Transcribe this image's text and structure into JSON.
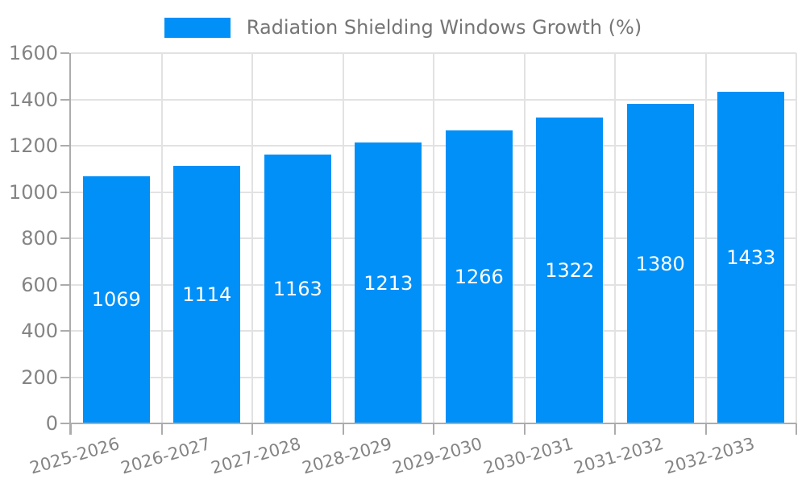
{
  "legend": {
    "label": "Radiation Shielding Windows Growth (%)"
  },
  "chart_data": {
    "type": "bar",
    "title": "",
    "xlabel": "",
    "ylabel": "",
    "legend": "Radiation Shielding Windows Growth (%)",
    "legend_position": "top-center",
    "categories": [
      "2025-2026",
      "2026-2027",
      "2027-2028",
      "2028-2029",
      "2029-2030",
      "2030-2031",
      "2031-2032",
      "2032-2033"
    ],
    "values": [
      1069,
      1114,
      1163,
      1213,
      1266,
      1322,
      1380,
      1433
    ],
    "bar_labels_visible": true,
    "grid": true,
    "ylim": [
      0,
      1600
    ],
    "yticks": [
      0,
      200,
      400,
      600,
      800,
      1000,
      1200,
      1400,
      1600
    ],
    "colors": {
      "bar": "#0090F8",
      "grid": "#E2E2E2",
      "axis": "#ACACAC",
      "tick_label": "#848484",
      "legend_text": "#757575",
      "bar_value_label": "#FFFFFF",
      "background": "#FFFFFF"
    }
  }
}
